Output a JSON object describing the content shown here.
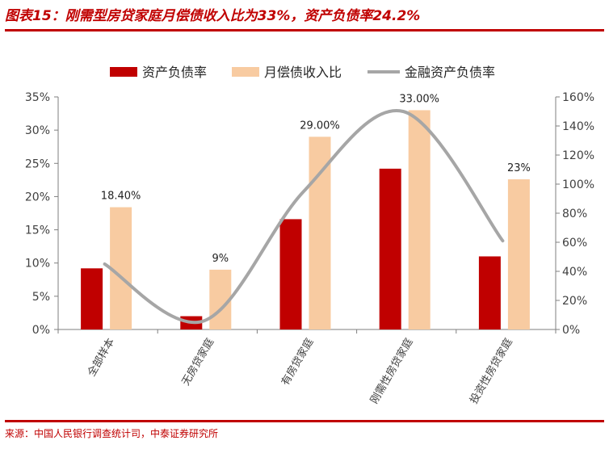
{
  "title": "图表15：刚需型房贷家庭月偿债收入比为33%，资产负债率24.2%",
  "source": "来源：中国人民银行调查统计司，中泰证券研究所",
  "colors": {
    "bar1": "#c00000",
    "bar2": "#f8cba1",
    "line": "#a6a6a6",
    "accent": "#c00000"
  },
  "chart_data": {
    "type": "bar",
    "categories": [
      "全部样本",
      "无房贷家庭",
      "有房贷家庭",
      "刚需性房贷家庭",
      "投资性房贷家庭"
    ],
    "series": [
      {
        "name": "资产负债率",
        "axis": "left",
        "values": [
          9.2,
          2.0,
          16.6,
          24.2,
          11.0
        ],
        "color": "#c00000"
      },
      {
        "name": "月偿债收入比",
        "axis": "left",
        "values": [
          18.4,
          9.0,
          29.0,
          33.0,
          22.6
        ],
        "color": "#f8cba1",
        "labels": [
          "18.40%",
          "9%",
          "29.00%",
          "33.00%",
          "23%"
        ]
      },
      {
        "name": "金融资产负债率",
        "axis": "right",
        "type": "line",
        "values": [
          45,
          6,
          95,
          150,
          61
        ],
        "color": "#a6a6a6"
      }
    ],
    "y_left": {
      "range": [
        0,
        35
      ],
      "ticks": [
        "0%",
        "5%",
        "10%",
        "15%",
        "20%",
        "25%",
        "30%",
        "35%"
      ]
    },
    "y_right": {
      "range": [
        0,
        160
      ],
      "ticks": [
        "0%",
        "20%",
        "40%",
        "60%",
        "80%",
        "100%",
        "120%",
        "140%",
        "160%"
      ]
    },
    "grid": false,
    "legend": "top"
  }
}
